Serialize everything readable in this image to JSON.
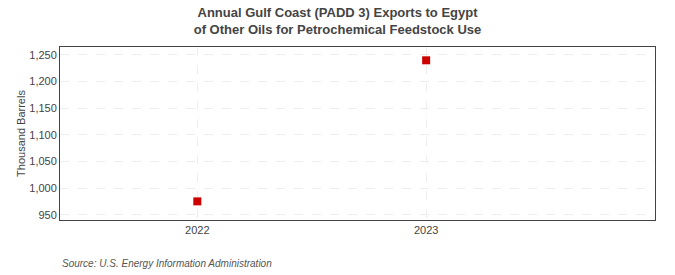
{
  "chart_data": {
    "type": "scatter",
    "title": "Annual Gulf Coast (PADD 3) Exports to Egypt of Other Oils for Petrochemical Feedstock Use",
    "ylabel": "Thousand Barrels",
    "source": "Source: U.S. Energy Information Administration",
    "x": [
      2022,
      2023
    ],
    "values": [
      975,
      1240
    ],
    "color": "#cc0000",
    "marker": "square",
    "xlim": [
      2021.4,
      2024.0
    ],
    "xticks": [
      2022,
      2023
    ],
    "ylim": [
      940,
      1265
    ],
    "yticks": [
      950,
      {
        "value": 1000,
        "label": "1,000"
      },
      {
        "value": 1050,
        "label": "1,050"
      },
      {
        "value": 1100,
        "label": "1,100"
      },
      {
        "value": 1150,
        "label": "1,150"
      },
      {
        "value": 1200,
        "label": "1,200"
      },
      {
        "value": 1250,
        "label": "1,250"
      }
    ],
    "grid": true
  }
}
